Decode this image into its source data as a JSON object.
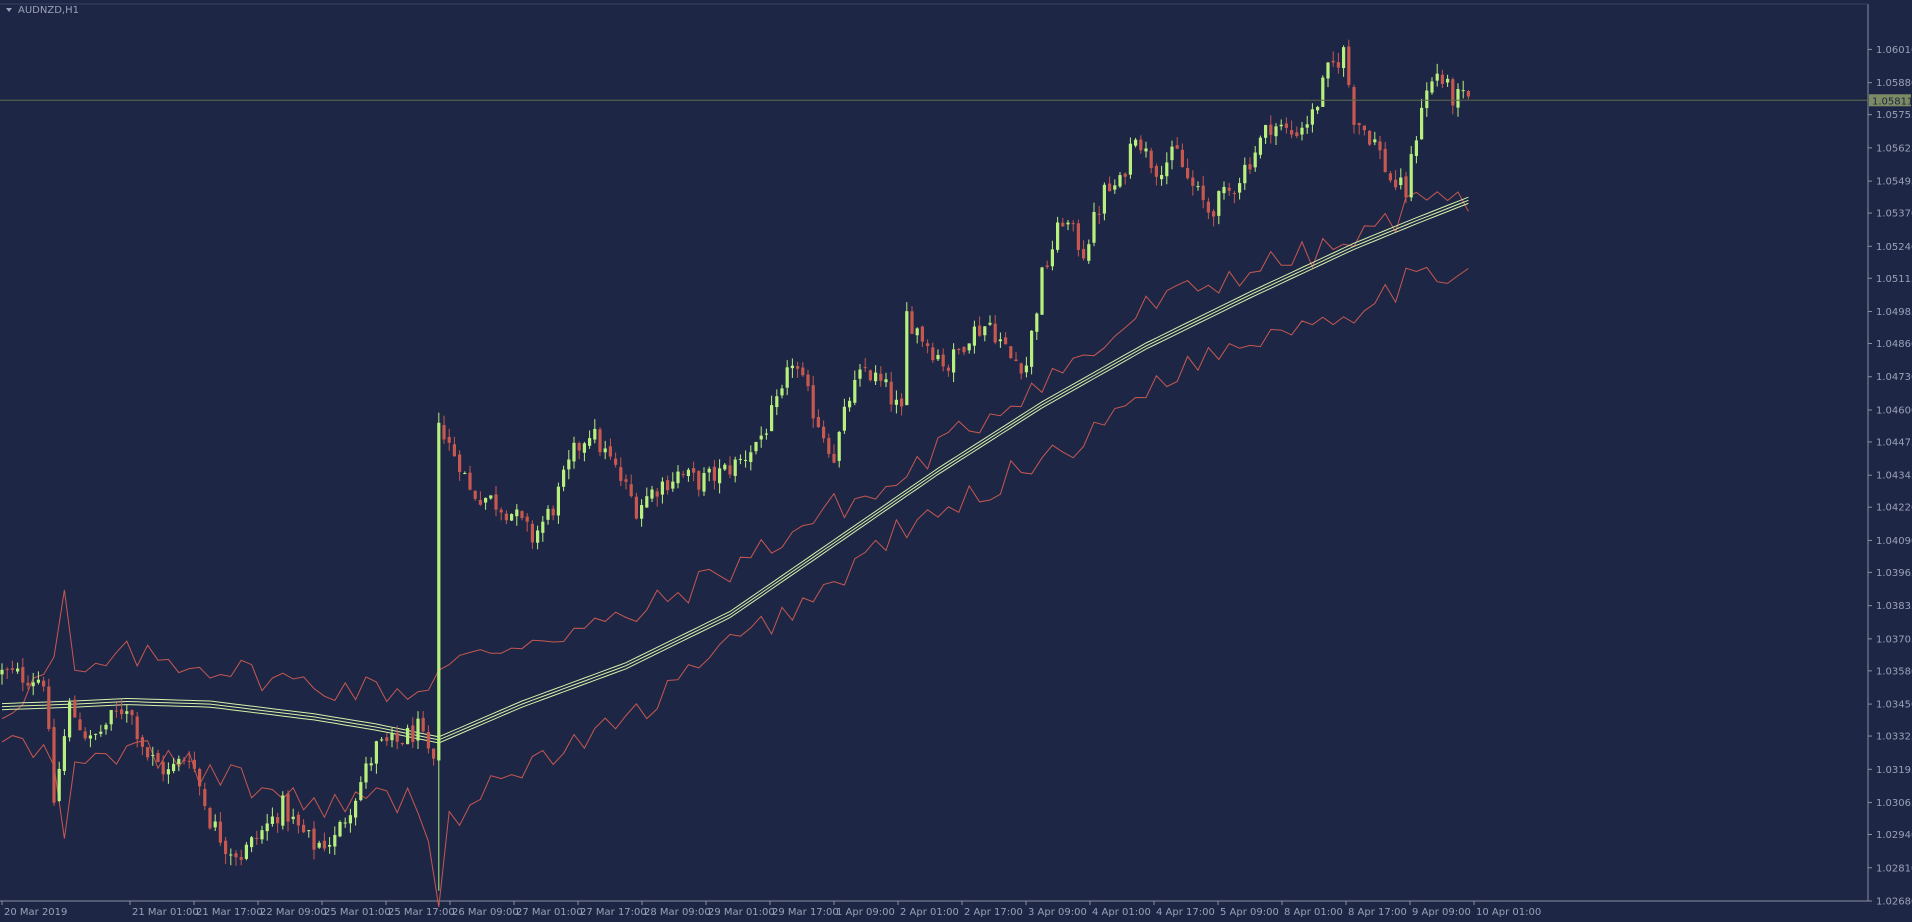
{
  "symbol_label": "AUDNZD,H1",
  "current_price": "1.05811",
  "colors": {
    "background": "#1e2646",
    "axis_line": "#8a8fa0",
    "text": "#9aa1b6",
    "bull": "#b7f07d",
    "bear": "#c6584f",
    "envelope": "#c6584f",
    "ma": "#d7f2a8",
    "price_line": "#5b6b4f",
    "price_box": "#7d8b63"
  },
  "chart_data": {
    "type": "candlestick",
    "timeframe": "H1",
    "x_labels": [
      "20 Mar 2019",
      "21 Mar 01:00",
      "21 Mar 17:00",
      "22 Mar 09:00",
      "25 Mar 01:00",
      "25 Mar 17:00",
      "26 Mar 09:00",
      "27 Mar 01:00",
      "27 Mar 17:00",
      "28 Mar 09:00",
      "29 Mar 01:00",
      "29 Mar 17:00",
      "1 Apr 09:00",
      "2 Apr 01:00",
      "2 Apr 17:00",
      "3 Apr 09:00",
      "4 Apr 01:00",
      "4 Apr 17:00",
      "5 Apr 09:00",
      "8 Apr 01:00",
      "8 Apr 17:00",
      "9 Apr 09:00",
      "10 Apr 01:00"
    ],
    "y_ticks": [
      "1.06010",
      "1.05880",
      "1.05755",
      "1.05625",
      "1.05495",
      "1.05370",
      "1.05240",
      "1.05115",
      "1.04985",
      "1.04860",
      "1.04730",
      "1.04600",
      "1.04475",
      "1.04345",
      "1.04220",
      "1.04090",
      "1.03965",
      "1.03835",
      "1.03705",
      "1.03580",
      "1.03450",
      "1.03325",
      "1.03195",
      "1.03065",
      "1.02940",
      "1.02810",
      "1.02680"
    ],
    "ylim": [
      1.0268,
      1.0608
    ],
    "close_path": [
      [
        0,
        1.0357
      ],
      [
        8,
        1.0355
      ],
      [
        10,
        1.0307
      ],
      [
        13,
        1.0344
      ],
      [
        17,
        1.033
      ],
      [
        20,
        1.0337
      ],
      [
        24,
        1.0345
      ],
      [
        28,
        1.0325
      ],
      [
        32,
        1.0318
      ],
      [
        36,
        1.0326
      ],
      [
        40,
        1.03
      ],
      [
        43,
        1.029
      ],
      [
        46,
        1.0286
      ],
      [
        50,
        1.0295
      ],
      [
        54,
        1.0305
      ],
      [
        57,
        1.0296
      ],
      [
        60,
        1.029
      ],
      [
        64,
        1.0292
      ],
      [
        68,
        1.031
      ],
      [
        72,
        1.0328
      ],
      [
        76,
        1.033
      ],
      [
        80,
        1.0335
      ],
      [
        83,
        1.032
      ],
      [
        84,
        1.0452
      ],
      [
        88,
        1.044
      ],
      [
        90,
        1.0428
      ],
      [
        94,
        1.0425
      ],
      [
        98,
        1.042
      ],
      [
        102,
        1.041
      ],
      [
        106,
        1.0422
      ],
      [
        110,
        1.0443
      ],
      [
        113,
        1.0452
      ],
      [
        117,
        1.044
      ],
      [
        122,
        1.0422
      ],
      [
        126,
        1.043
      ],
      [
        130,
        1.0435
      ],
      [
        134,
        1.0432
      ],
      [
        138,
        1.0435
      ],
      [
        142,
        1.044
      ],
      [
        146,
        1.045
      ],
      [
        150,
        1.0465
      ],
      [
        152,
        1.048
      ],
      [
        156,
        1.046
      ],
      [
        160,
        1.0442
      ],
      [
        163,
        1.0465
      ],
      [
        166,
        1.0476
      ],
      [
        170,
        1.0468
      ],
      [
        173,
        1.0458
      ],
      [
        174,
        1.0497
      ],
      [
        178,
        1.0486
      ],
      [
        182,
        1.0477
      ],
      [
        186,
        1.049
      ],
      [
        190,
        1.0494
      ],
      [
        194,
        1.048
      ],
      [
        197,
        1.0478
      ],
      [
        200,
        1.0512
      ],
      [
        204,
        1.0535
      ],
      [
        208,
        1.0522
      ],
      [
        212,
        1.0545
      ],
      [
        215,
        1.0548
      ],
      [
        218,
        1.057
      ],
      [
        220,
        1.056
      ],
      [
        222,
        1.0555
      ],
      [
        226,
        1.056
      ],
      [
        228,
        1.055
      ],
      [
        232,
        1.0538
      ],
      [
        236,
        1.0545
      ],
      [
        240,
        1.0558
      ],
      [
        244,
        1.0572
      ],
      [
        248,
        1.0568
      ],
      [
        252,
        1.0575
      ],
      [
        255,
        1.0592
      ],
      [
        258,
        1.06
      ],
      [
        260,
        1.0575
      ],
      [
        264,
        1.0565
      ],
      [
        267,
        1.055
      ],
      [
        270,
        1.0545
      ],
      [
        273,
        1.058
      ],
      [
        276,
        1.0592
      ],
      [
        279,
        1.0582
      ],
      [
        282,
        1.0581
      ]
    ],
    "envelope_upper_path": [
      [
        0,
        1.0342
      ],
      [
        10,
        1.036
      ],
      [
        11,
        1.0406
      ],
      [
        14,
        1.0354
      ],
      [
        24,
        1.0364
      ],
      [
        40,
        1.036
      ],
      [
        60,
        1.0352
      ],
      [
        80,
        1.035
      ],
      [
        84,
        1.0358
      ],
      [
        100,
        1.037
      ],
      [
        120,
        1.0378
      ],
      [
        140,
        1.0398
      ],
      [
        160,
        1.0422
      ],
      [
        170,
        1.0428
      ],
      [
        180,
        1.0445
      ],
      [
        200,
        1.0472
      ],
      [
        210,
        1.0482
      ],
      [
        220,
        1.05
      ],
      [
        240,
        1.0515
      ],
      [
        260,
        1.0525
      ],
      [
        270,
        1.0538
      ],
      [
        276,
        1.055
      ],
      [
        282,
        1.0538
      ]
    ],
    "envelope_lower_path": [
      [
        0,
        1.0332
      ],
      [
        10,
        1.0322
      ],
      [
        11,
        1.0282
      ],
      [
        14,
        1.0318
      ],
      [
        24,
        1.0328
      ],
      [
        40,
        1.0318
      ],
      [
        60,
        1.0306
      ],
      [
        80,
        1.0308
      ],
      [
        84,
        1.027
      ],
      [
        86,
        1.03
      ],
      [
        100,
        1.032
      ],
      [
        120,
        1.0338
      ],
      [
        140,
        1.0368
      ],
      [
        160,
        1.0392
      ],
      [
        170,
        1.041
      ],
      [
        180,
        1.0418
      ],
      [
        200,
        1.0442
      ],
      [
        210,
        1.045
      ],
      [
        220,
        1.047
      ],
      [
        240,
        1.0488
      ],
      [
        260,
        1.05
      ],
      [
        270,
        1.051
      ],
      [
        276,
        1.051
      ],
      [
        282,
        1.052
      ]
    ],
    "ma_path": [
      [
        0,
        1.0344
      ],
      [
        14,
        1.0345
      ],
      [
        24,
        1.0346
      ],
      [
        40,
        1.0345
      ],
      [
        60,
        1.034
      ],
      [
        72,
        1.0336
      ],
      [
        84,
        1.0331
      ],
      [
        100,
        1.0345
      ],
      [
        120,
        1.036
      ],
      [
        140,
        1.038
      ],
      [
        160,
        1.0408
      ],
      [
        180,
        1.0436
      ],
      [
        200,
        1.0462
      ],
      [
        220,
        1.0485
      ],
      [
        240,
        1.0505
      ],
      [
        260,
        1.0524
      ],
      [
        272,
        1.0534
      ],
      [
        282,
        1.0542
      ]
    ]
  }
}
